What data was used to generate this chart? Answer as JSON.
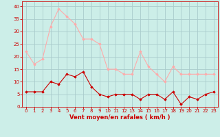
{
  "x": [
    0,
    1,
    2,
    3,
    4,
    5,
    6,
    7,
    8,
    9,
    10,
    11,
    12,
    13,
    14,
    15,
    16,
    17,
    18,
    19,
    20,
    21,
    22,
    23
  ],
  "rafales": [
    22,
    17,
    19,
    32,
    39,
    36,
    33,
    27,
    27,
    25,
    15,
    15,
    13,
    13,
    22,
    16,
    13,
    10,
    16,
    13,
    13,
    13,
    13,
    13
  ],
  "moyen": [
    6,
    6,
    6,
    10,
    9,
    13,
    12,
    14,
    8,
    5,
    4,
    5,
    5,
    5,
    3,
    5,
    5,
    3,
    6,
    1,
    4,
    3,
    5,
    6
  ],
  "rafales_color": "#ffaaaa",
  "moyen_color": "#cc0000",
  "bg_color": "#cceee8",
  "grid_color": "#aacccc",
  "xlabel": "Vent moyen/en rafales ( km/h )",
  "xlabel_color": "#cc0000",
  "tick_color": "#cc0000",
  "xlim": [
    -0.5,
    23.5
  ],
  "ylim": [
    0,
    42
  ],
  "yticks": [
    0,
    5,
    10,
    15,
    20,
    25,
    30,
    35,
    40
  ],
  "xticks": [
    0,
    1,
    2,
    3,
    4,
    5,
    6,
    7,
    8,
    9,
    10,
    11,
    12,
    13,
    14,
    15,
    16,
    17,
    18,
    19,
    20,
    21,
    22,
    23
  ],
  "marker": "D",
  "marker_size": 1.8,
  "line_width": 0.8,
  "tick_fontsize": 5.0,
  "xlabel_fontsize": 6.0
}
